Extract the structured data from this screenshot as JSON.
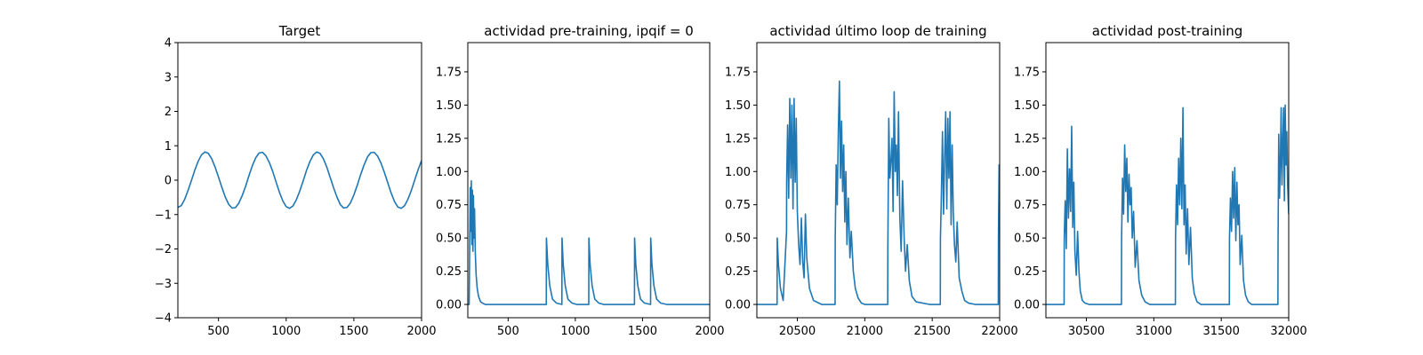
{
  "figure": {
    "line_color": "#1f77b4"
  },
  "chart_data": [
    {
      "type": "line",
      "title": "Target",
      "xlim": [
        200,
        2000
      ],
      "ylim": [
        -4,
        4
      ],
      "xticks": [
        500,
        1000,
        1500,
        2000
      ],
      "yticks": [
        -4,
        -3,
        -2,
        -1,
        0,
        1,
        2,
        3,
        4
      ],
      "xtick_labels": [
        "500",
        "1000",
        "1500",
        "2000"
      ],
      "ytick_labels": [
        "−4",
        "−3",
        "−2",
        "−1",
        "0",
        "1",
        "2",
        "3",
        "4"
      ],
      "grid": false,
      "series": [
        {
          "x": [
            200,
            225,
            250,
            275,
            300,
            325,
            350,
            375,
            400,
            425,
            450,
            475,
            500,
            525,
            550,
            575,
            600,
            625,
            650,
            675,
            700,
            725,
            750,
            775,
            800,
            825,
            850,
            875,
            900,
            925,
            950,
            975,
            1000,
            1025,
            1050,
            1075,
            1100,
            1125,
            1150,
            1175,
            1200,
            1225,
            1250,
            1275,
            1300,
            1325,
            1350,
            1375,
            1400,
            1425,
            1450,
            1475,
            1500,
            1525,
            1550,
            1575,
            1600,
            1625,
            1650,
            1675,
            1700,
            1725,
            1750,
            1775,
            1800,
            1825,
            1850,
            1875,
            1900,
            1925,
            1950,
            1975,
            2000
          ],
          "y": [
            -0.79,
            -0.74,
            -0.56,
            -0.3,
            -0.01,
            0.29,
            0.55,
            0.74,
            0.82,
            0.78,
            0.62,
            0.38,
            0.09,
            -0.21,
            -0.49,
            -0.7,
            -0.81,
            -0.8,
            -0.67,
            -0.45,
            -0.18,
            0.13,
            0.42,
            0.65,
            0.79,
            0.81,
            0.71,
            0.52,
            0.26,
            -0.05,
            -0.35,
            -0.6,
            -0.77,
            -0.82,
            -0.75,
            -0.57,
            -0.32,
            -0.03,
            0.28,
            0.54,
            0.73,
            0.82,
            0.78,
            0.62,
            0.38,
            0.08,
            -0.22,
            -0.49,
            -0.71,
            -0.81,
            -0.79,
            -0.66,
            -0.43,
            -0.15,
            0.16,
            0.44,
            0.67,
            0.8,
            0.81,
            0.7,
            0.5,
            0.23,
            -0.07,
            -0.37,
            -0.62,
            -0.78,
            -0.82,
            -0.74,
            -0.55,
            -0.29,
            0.01,
            0.31,
            0.57
          ]
        }
      ]
    },
    {
      "type": "line",
      "title": "actividad pre-training, ipqif = 0",
      "xlim": [
        200,
        2000
      ],
      "ylim": [
        -0.1,
        1.97
      ],
      "xticks": [
        500,
        1000,
        1500,
        2000
      ],
      "yticks": [
        0,
        0.25,
        0.5,
        0.75,
        1.0,
        1.25,
        1.5,
        1.75
      ],
      "xtick_labels": [
        "500",
        "1000",
        "1500",
        "2000"
      ],
      "ytick_labels": [
        "0.00",
        "0.25",
        "0.50",
        "0.75",
        "1.00",
        "1.25",
        "1.50",
        "1.75"
      ],
      "grid": false,
      "series": [
        {
          "x": [
            200,
            210,
            214,
            218,
            222,
            226,
            230,
            234,
            238,
            242,
            246,
            250,
            256,
            262,
            270,
            280,
            295,
            310,
            330,
            360,
            400,
            500,
            600,
            700,
            784,
            785,
            795,
            810,
            830,
            860,
            900,
            901,
            910,
            925,
            945,
            975,
            1010,
            1100,
            1101,
            1110,
            1125,
            1145,
            1175,
            1210,
            1300,
            1440,
            1441,
            1450,
            1465,
            1485,
            1515,
            1560,
            1561,
            1570,
            1585,
            1605,
            1635,
            1680,
            1800,
            2000
          ],
          "y": [
            0,
            0,
            0.45,
            0.88,
            0.55,
            0.93,
            0.45,
            0.86,
            0.4,
            0.82,
            0.5,
            0.72,
            0.38,
            0.22,
            0.12,
            0.06,
            0.02,
            0.01,
            0,
            0,
            0,
            0,
            0,
            0,
            0,
            0.5,
            0.3,
            0.14,
            0.04,
            0.01,
            0,
            0.5,
            0.3,
            0.14,
            0.04,
            0.01,
            0,
            0,
            0.5,
            0.3,
            0.14,
            0.04,
            0.01,
            0,
            0,
            0,
            0.5,
            0.3,
            0.14,
            0.04,
            0.01,
            0,
            0.5,
            0.3,
            0.14,
            0.04,
            0.01,
            0,
            0,
            0
          ]
        }
      ]
    },
    {
      "type": "line",
      "title": "actividad último loop de training",
      "xlim": [
        20200,
        22000
      ],
      "ylim": [
        -0.1,
        1.97
      ],
      "xticks": [
        20500,
        21000,
        21500,
        22000
      ],
      "yticks": [
        0,
        0.25,
        0.5,
        0.75,
        1.0,
        1.25,
        1.5,
        1.75
      ],
      "xtick_labels": [
        "20500",
        "21000",
        "21500",
        "22000"
      ],
      "ytick_labels": [
        "0.00",
        "0.25",
        "0.50",
        "0.75",
        "1.00",
        "1.25",
        "1.50",
        "1.75"
      ],
      "grid": false,
      "series": [
        {
          "x": [
            20200,
            20350,
            20351,
            20360,
            20375,
            20395,
            20420,
            20421,
            20428,
            20436,
            20444,
            20452,
            20460,
            20468,
            20476,
            20484,
            20492,
            20500,
            20510,
            20520,
            20530,
            20540,
            20550,
            20560,
            20570,
            20590,
            20620,
            20680,
            20780,
            20781,
            20788,
            20796,
            20804,
            20812,
            20820,
            20828,
            20836,
            20844,
            20852,
            20860,
            20868,
            20878,
            20890,
            20900,
            20915,
            20930,
            20950,
            20975,
            21000,
            21100,
            21170,
            21171,
            21178,
            21186,
            21194,
            21202,
            21210,
            21218,
            21226,
            21234,
            21242,
            21250,
            21260,
            21270,
            21280,
            21292,
            21302,
            21315,
            21330,
            21350,
            21380,
            21480,
            21560,
            21561,
            21568,
            21576,
            21584,
            21592,
            21600,
            21608,
            21616,
            21624,
            21632,
            21640,
            21648,
            21656,
            21665,
            21675,
            21685,
            21700,
            21720,
            21740,
            21770,
            21820,
            21900,
            21990,
            21991,
            21996,
            22000
          ],
          "y": [
            0,
            0,
            0.5,
            0.3,
            0.12,
            0.03,
            0.55,
            0.93,
            1.35,
            0.8,
            1.55,
            0.95,
            1.5,
            0.72,
            1.55,
            0.92,
            1.4,
            0.7,
            0.45,
            0.3,
            0.65,
            0.32,
            0.2,
            0.68,
            0.35,
            0.12,
            0.03,
            0,
            0,
            0.5,
            1.05,
            0.75,
            1.3,
            1.68,
            0.95,
            1.38,
            0.85,
            1.2,
            0.62,
            1.0,
            0.45,
            0.8,
            0.35,
            0.55,
            0.25,
            0.12,
            0.05,
            0.01,
            0,
            0,
            0,
            0.4,
            1.4,
            0.95,
            1.08,
            1.25,
            0.7,
            1.6,
            1.0,
            1.2,
            0.82,
            1.45,
            0.65,
            0.4,
            0.93,
            0.5,
            0.25,
            0.45,
            0.18,
            0.06,
            0.02,
            0,
            0,
            0.5,
            0.82,
            1.3,
            0.68,
            1.1,
            1.45,
            0.72,
            1.4,
            0.95,
            1.45,
            0.6,
            1.2,
            0.7,
            0.45,
            0.32,
            0.62,
            0.2,
            0.1,
            0.03,
            0.01,
            0,
            0,
            0,
            0.5,
            1.05,
            0.55
          ]
        }
      ]
    },
    {
      "type": "line",
      "title": "actividad post-training",
      "xlim": [
        30200,
        32000
      ],
      "ylim": [
        -0.1,
        1.97
      ],
      "xticks": [
        30500,
        31000,
        31500,
        32000
      ],
      "yticks": [
        0,
        0.25,
        0.5,
        0.75,
        1.0,
        1.25,
        1.5,
        1.75
      ],
      "xtick_labels": [
        "30500",
        "31000",
        "31500",
        "32000"
      ],
      "ytick_labels": [
        "0.00",
        "0.25",
        "0.50",
        "0.75",
        "1.00",
        "1.25",
        "1.50",
        "1.75"
      ],
      "grid": false,
      "series": [
        {
          "x": [
            30200,
            30335,
            30336,
            30343,
            30351,
            30359,
            30367,
            30375,
            30383,
            30391,
            30399,
            30407,
            30415,
            30425,
            30435,
            30445,
            30455,
            30470,
            30490,
            30520,
            30600,
            30760,
            30761,
            30768,
            30776,
            30784,
            30792,
            30800,
            30808,
            30816,
            30824,
            30832,
            30840,
            30850,
            30862,
            30875,
            30890,
            30910,
            30935,
            30970,
            31070,
            31160,
            31161,
            31168,
            31176,
            31184,
            31192,
            31200,
            31208,
            31216,
            31224,
            31232,
            31240,
            31250,
            31260,
            31272,
            31285,
            31300,
            31320,
            31350,
            31450,
            31560,
            31561,
            31568,
            31576,
            31584,
            31592,
            31600,
            31608,
            31616,
            31624,
            31632,
            31640,
            31652,
            31665,
            31680,
            31700,
            31725,
            31760,
            31850,
            31920,
            31921,
            31926,
            31932,
            31938,
            31944,
            31950,
            31956,
            31962,
            31968,
            31974,
            31980,
            31986,
            31992,
            32000
          ],
          "y": [
            0,
            0,
            0.5,
            0.78,
            0.42,
            1.17,
            0.65,
            1.02,
            0.7,
            1.34,
            0.58,
            0.92,
            0.4,
            0.22,
            0.55,
            0.25,
            0.1,
            0.03,
            0.01,
            0,
            0,
            0,
            0.5,
            0.95,
            0.68,
            1.2,
            0.85,
            1.1,
            0.62,
            0.98,
            0.75,
            0.88,
            0.5,
            0.7,
            0.28,
            0.48,
            0.18,
            0.07,
            0.02,
            0,
            0,
            0,
            0.5,
            0.9,
            0.6,
            1.1,
            0.75,
            1.25,
            0.72,
            1.48,
            0.6,
            0.9,
            0.38,
            0.72,
            0.3,
            0.58,
            0.2,
            0.08,
            0.02,
            0,
            0,
            0,
            0.5,
            0.8,
            0.55,
            1.0,
            0.65,
            1.03,
            0.48,
            0.92,
            0.6,
            0.75,
            0.3,
            0.52,
            0.18,
            0.07,
            0.02,
            0,
            0,
            0,
            0,
            0.45,
            1.28,
            0.8,
            1.05,
            1.48,
            0.9,
            1.2,
            1.48,
            0.78,
            1.5,
            1.05,
            1.3,
            0.9,
            0.68
          ]
        }
      ]
    }
  ]
}
